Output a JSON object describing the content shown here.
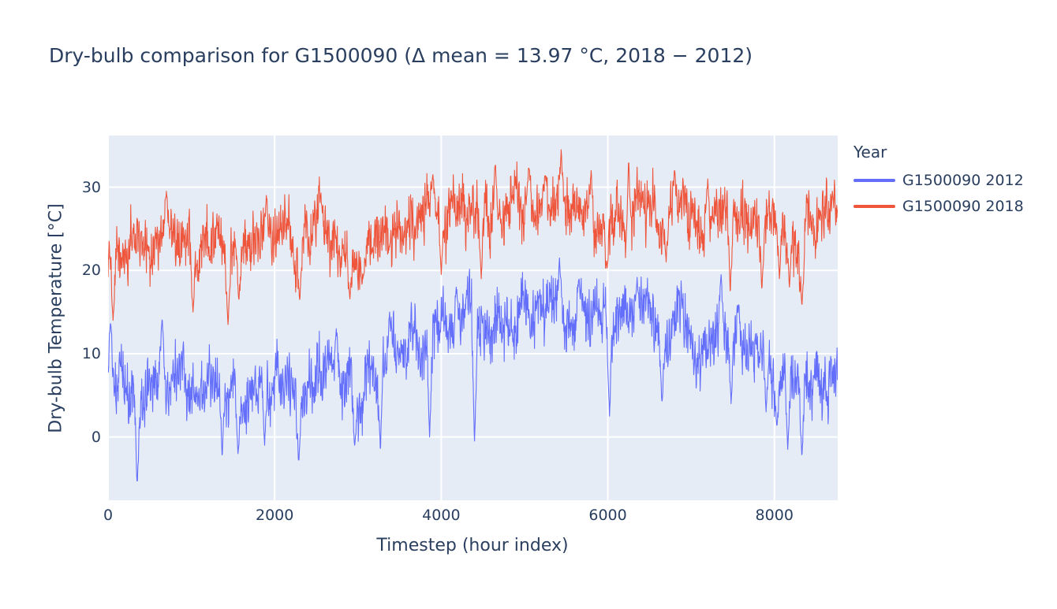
{
  "chart_data": {
    "type": "line",
    "title": "Dry-bulb comparison for G1500090 (Δ mean = 13.97 °C, 2018 − 2012)",
    "xlabel": "Timestep (hour index)",
    "ylabel": "Dry-bulb Temperature [°C]",
    "legend_title": "Year",
    "legend_position": "outside-top-right",
    "grid": true,
    "plot_bgcolor": "#E5ECF6",
    "grid_color": "#FFFFFF",
    "font_color": "#2a3f5f",
    "x_range": [
      0,
      8760
    ],
    "y_range": [
      -7.6,
      36.2
    ],
    "x_ticks": [
      0,
      2000,
      4000,
      6000,
      8000
    ],
    "y_ticks": [
      0,
      10,
      20,
      30
    ],
    "delta_mean_c": 13.97,
    "trend_step_hours": 120,
    "render": {
      "step_hours": 4,
      "excursion_halfwidth_hours": 36,
      "wander_decay": 0.93,
      "wander_step": 1.1,
      "wander_clamp": 3.5
    },
    "series": [
      {
        "name": "G1500090 2012",
        "color": "#636EFA",
        "seed": 13,
        "band_halfwidth_c": 2.2,
        "diurnal_amplitude_c": 1.2,
        "trend": [
          10,
          7.5,
          5,
          4,
          6,
          8,
          7,
          6,
          8,
          6.5,
          7,
          5,
          5.5,
          4.5,
          6,
          7,
          6,
          7.5,
          6,
          4,
          6.5,
          7.5,
          9.5,
          7.5,
          6.5,
          5.5,
          8.5,
          7,
          9.5,
          10,
          11,
          11.5,
          12,
          13,
          13,
          13.5,
          14.5,
          15,
          14,
          14.5,
          15,
          15.5,
          15.5,
          14.5,
          15.5,
          16.5,
          15.5,
          15.5,
          15.5,
          14.5,
          14,
          15,
          13.5,
          14.5,
          14.5,
          12,
          13,
          13.5,
          11,
          12,
          12.5,
          14,
          11.5,
          12.5,
          10.5,
          10,
          10.5,
          8,
          6,
          5,
          6,
          6.5,
          7,
          7
        ],
        "dips": [
          [
            350,
            -6
          ],
          [
            1370,
            -2.5
          ],
          [
            1560,
            -2
          ],
          [
            1880,
            -1
          ],
          [
            2290,
            -3
          ],
          [
            2960,
            -1
          ],
          [
            3270,
            -2
          ],
          [
            3860,
            0
          ],
          [
            4400,
            -0.5
          ],
          [
            6020,
            2.5
          ],
          [
            6650,
            4
          ],
          [
            7480,
            4
          ],
          [
            7900,
            3
          ],
          [
            8030,
            1
          ],
          [
            8160,
            -1.5
          ],
          [
            8330,
            -2.5
          ]
        ],
        "spikes": [
          [
            30,
            14
          ],
          [
            650,
            14.5
          ],
          [
            2740,
            13
          ],
          [
            3380,
            15
          ],
          [
            4180,
            18
          ],
          [
            5420,
            21.5
          ],
          [
            5650,
            19
          ],
          [
            6350,
            18.5
          ],
          [
            7360,
            19.5
          ],
          [
            7570,
            16
          ]
        ]
      },
      {
        "name": "G1500090 2018",
        "color": "#EF553B",
        "seed": 57,
        "band_halfwidth_c": 2.0,
        "diurnal_amplitude_c": 1.2,
        "trend": [
          22.5,
          21,
          23,
          22,
          24,
          24.5,
          25.5,
          23.5,
          23.5,
          22,
          24,
          22,
          21,
          22,
          24.5,
          24,
          25.5,
          24.5,
          23.5,
          21.5,
          24.5,
          25,
          25.5,
          23.5,
          22,
          23,
          25,
          24.5,
          25.5,
          24.5,
          25.5,
          26,
          26.5,
          27,
          25.5,
          26,
          27,
          27.5,
          26.5,
          28,
          27,
          27.5,
          28,
          27,
          28,
          29,
          27.5,
          27.5,
          28,
          27,
          25.5,
          27,
          25.5,
          28.5,
          27,
          25.5,
          26.5,
          27,
          25.5,
          26.5,
          26,
          26.5,
          24,
          25.5,
          24.5,
          23.5,
          25,
          24.5,
          23,
          22,
          24,
          25.5,
          26,
          26.5
        ],
        "dips": [
          [
            60,
            14
          ],
          [
            1020,
            15
          ],
          [
            1440,
            13.5
          ],
          [
            1570,
            16
          ],
          [
            2300,
            16.5
          ],
          [
            2900,
            17
          ],
          [
            3060,
            19
          ],
          [
            4000,
            19.5
          ],
          [
            4480,
            19
          ],
          [
            5990,
            20
          ],
          [
            6230,
            20
          ],
          [
            6700,
            21
          ],
          [
            7470,
            17
          ],
          [
            7850,
            17.5
          ],
          [
            8060,
            19
          ],
          [
            8180,
            18
          ],
          [
            8330,
            15.5
          ]
        ],
        "spikes": [
          [
            700,
            29.5
          ],
          [
            1900,
            29
          ],
          [
            2550,
            29
          ],
          [
            3900,
            31.5
          ],
          [
            4650,
            33
          ],
          [
            5050,
            32.5
          ],
          [
            5250,
            31.5
          ],
          [
            5440,
            34.5
          ],
          [
            5800,
            32
          ],
          [
            6250,
            33.5
          ],
          [
            6800,
            32
          ],
          [
            7200,
            31
          ],
          [
            8700,
            29
          ]
        ]
      }
    ]
  }
}
